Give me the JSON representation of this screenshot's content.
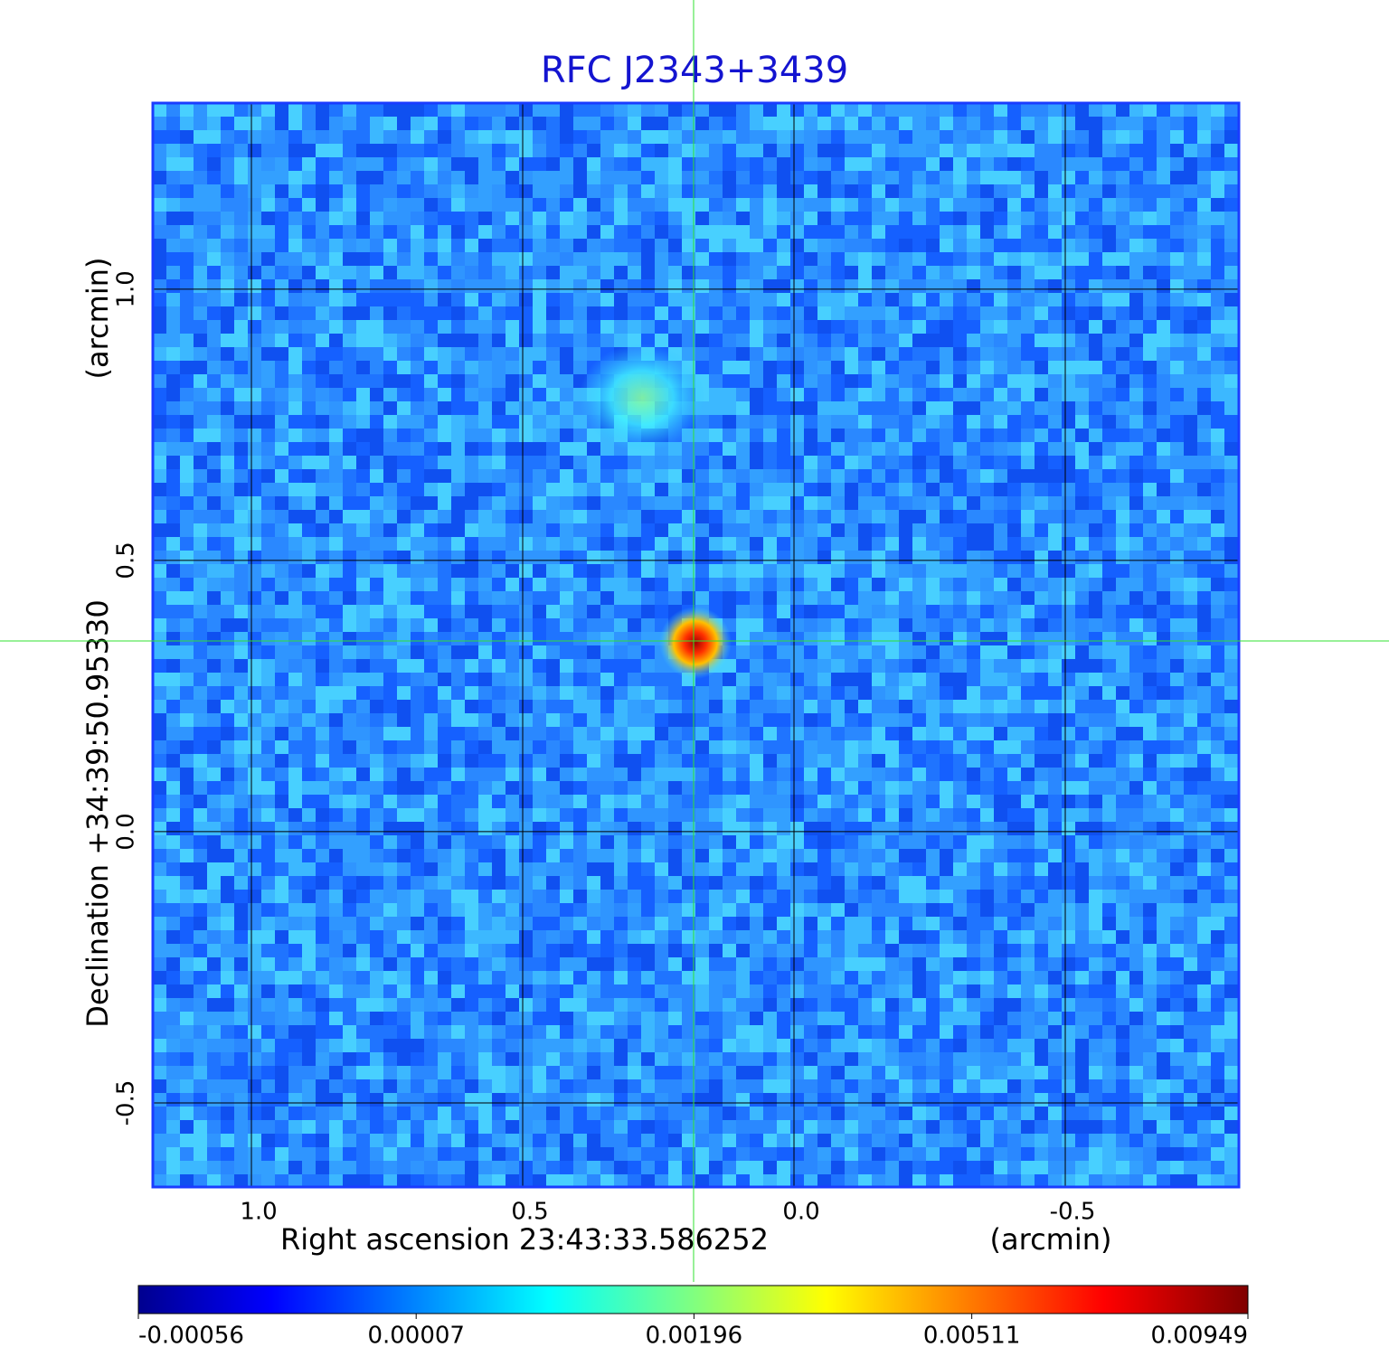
{
  "chart_data": {
    "type": "image",
    "title": "RFC J2343+3439",
    "x_label": "Right ascension  23:43:33.586252",
    "x_unit": "(arcmin)",
    "y_label": "Declination  +34:39:50.95330",
    "y_unit": "(arcmin)",
    "xlim": [
      1.1817,
      -0.82
    ],
    "ylim": [
      -0.655,
      1.343
    ],
    "xticks": [
      {
        "value": 1.0,
        "label": "1.0"
      },
      0.5,
      {
        "value": 0.0,
        "label": "0.0"
      },
      -0.5
    ],
    "yticks": [
      -0.5,
      {
        "value": 0.0,
        "label": "0.0"
      },
      0.5,
      {
        "value": 1.0,
        "label": "1.0"
      }
    ],
    "grid": true,
    "colorbar": {
      "scale": "sqrt",
      "lim": [
        -0.00056,
        0.00949
      ],
      "ticks": [
        -0.00056,
        7e-05,
        0.00196,
        0.00511,
        0.00949
      ]
    }
  }
}
